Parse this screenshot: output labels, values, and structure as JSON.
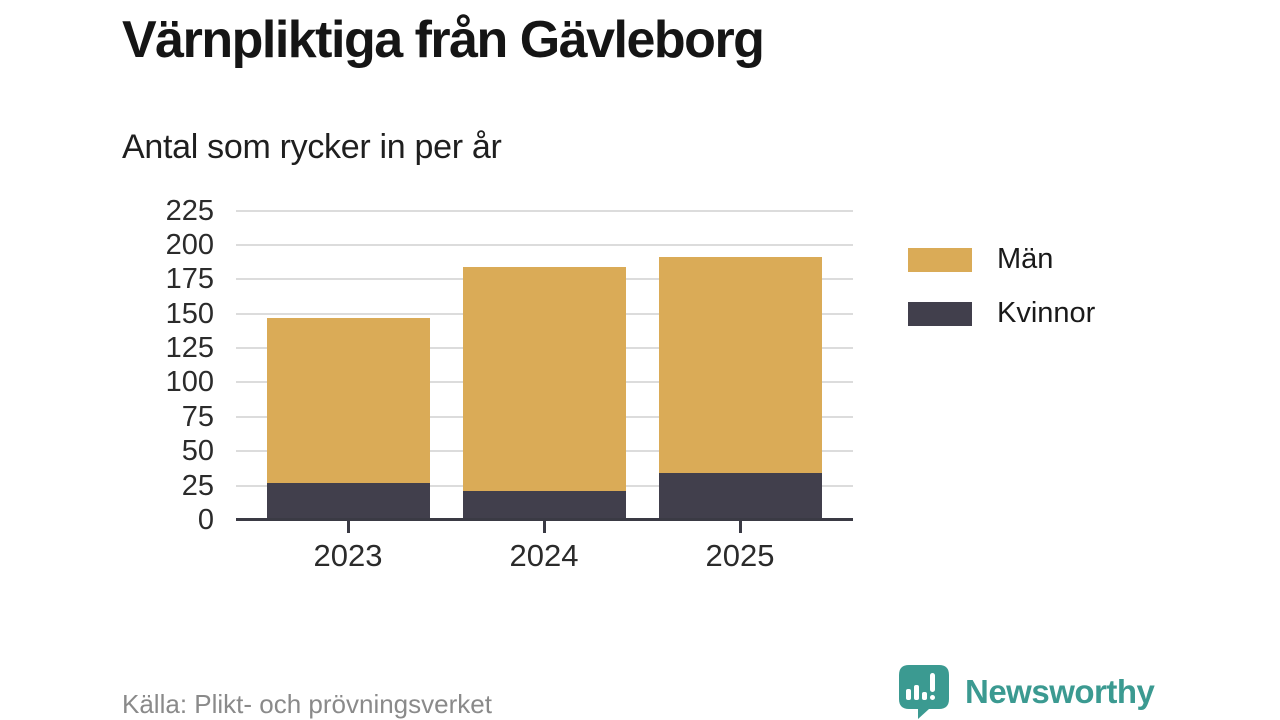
{
  "header": {
    "title": "Värnpliktiga från Gävleborg",
    "subtitle": "Antal som rycker in per år"
  },
  "chart_data": {
    "type": "bar",
    "stacked": true,
    "title": "Värnpliktiga från Gävleborg",
    "subtitle": "Antal som rycker in per år",
    "categories": [
      "2023",
      "2024",
      "2025"
    ],
    "series": [
      {
        "name": "Män",
        "color": "#DAAB57",
        "values": [
          120,
          163,
          157
        ]
      },
      {
        "name": "Kvinnor",
        "color": "#413F4C",
        "values": [
          27,
          21,
          34
        ]
      }
    ],
    "stack_order_bottom_to_top": [
      "Kvinnor",
      "Män"
    ],
    "stack_totals": [
      147,
      184,
      191
    ],
    "ylim": [
      0,
      225
    ],
    "yticks": [
      0,
      25,
      50,
      75,
      100,
      125,
      150,
      175,
      200,
      225
    ],
    "grid": true,
    "legend_position": "right",
    "xlabel": "",
    "ylabel": ""
  },
  "footer": {
    "source": "Källa: Plikt- och prövningsverket",
    "brand": "Newsworthy"
  },
  "colors": {
    "men": "#DAAB57",
    "women": "#413F4C",
    "axis": "#3a3a44",
    "gridline": "#dcdcdc",
    "brand_teal": "#3b9a91",
    "source_gray": "#8a8a8a"
  }
}
